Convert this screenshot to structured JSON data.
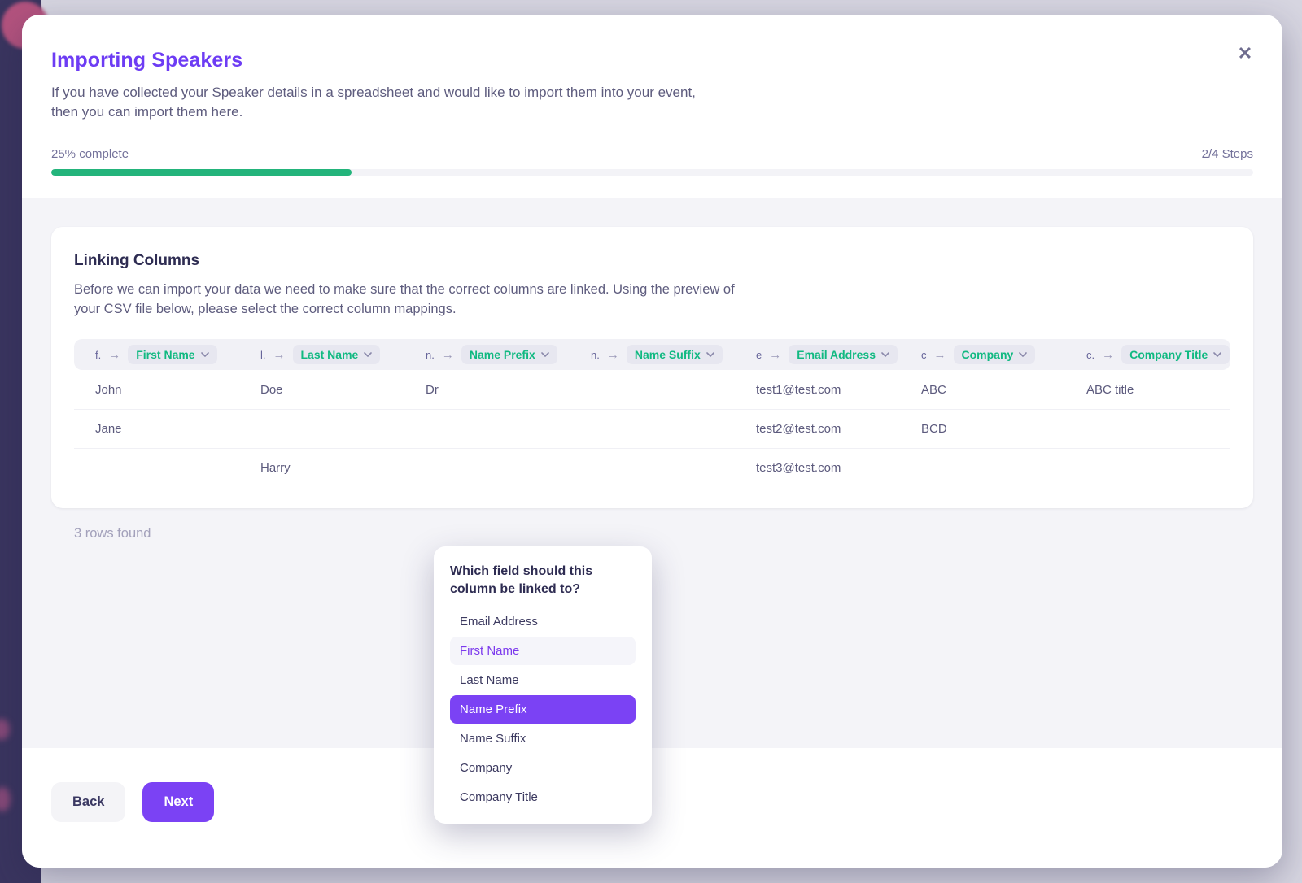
{
  "modal": {
    "close_icon": "✕",
    "title": "Importing Speakers",
    "description": "If you have collected your Speaker details in a spreadsheet and would like to import them into your event, then you can import them here.",
    "progress": {
      "label": "25% complete",
      "steps": "2/4 Steps",
      "percent": 25,
      "fill_color": "#23b47b"
    },
    "card": {
      "title": "Linking Columns",
      "description": "Before we can import your data we need to make sure that the correct columns are linked. Using the preview of your CSV file below, please select the correct column mappings.",
      "columns": [
        {
          "source": "f.",
          "mapped": "First Name"
        },
        {
          "source": "l.",
          "mapped": "Last Name"
        },
        {
          "source": "n.",
          "mapped": "Name Prefix"
        },
        {
          "source": "n.",
          "mapped": "Name Suffix"
        },
        {
          "source": "e",
          "mapped": "Email Address"
        },
        {
          "source": "c",
          "mapped": "Company"
        },
        {
          "source": "c.",
          "mapped": "Company Title"
        }
      ],
      "rows": [
        [
          "John",
          "Doe",
          "Dr",
          "",
          "test1@test.com",
          "ABC",
          "ABC title"
        ],
        [
          "Jane",
          "",
          "",
          "",
          "test2@test.com",
          "BCD",
          ""
        ],
        [
          "",
          "Harry",
          "",
          "",
          "test3@test.com",
          "",
          ""
        ]
      ],
      "rows_found": "3 rows found"
    },
    "popup": {
      "question": "Which field should this column be linked to?",
      "options": [
        {
          "label": "Email Address",
          "state": "normal"
        },
        {
          "label": "First Name",
          "state": "hover"
        },
        {
          "label": "Last Name",
          "state": "normal"
        },
        {
          "label": "Name Prefix",
          "state": "selected"
        },
        {
          "label": "Name Suffix",
          "state": "normal"
        },
        {
          "label": "Company",
          "state": "normal"
        },
        {
          "label": "Company Title",
          "state": "normal"
        }
      ]
    },
    "footer": {
      "back_label": "Back",
      "next_label": "Next"
    }
  },
  "colors": {
    "accent_purple": "#7b42f4",
    "title_purple": "#6d3cf4",
    "success_green": "#10b981",
    "progress_green": "#23b47b",
    "sidebar_dark": "#3a355f",
    "backdrop_lavender": "#d7d6e1",
    "logo_rose": "#b4537e"
  }
}
